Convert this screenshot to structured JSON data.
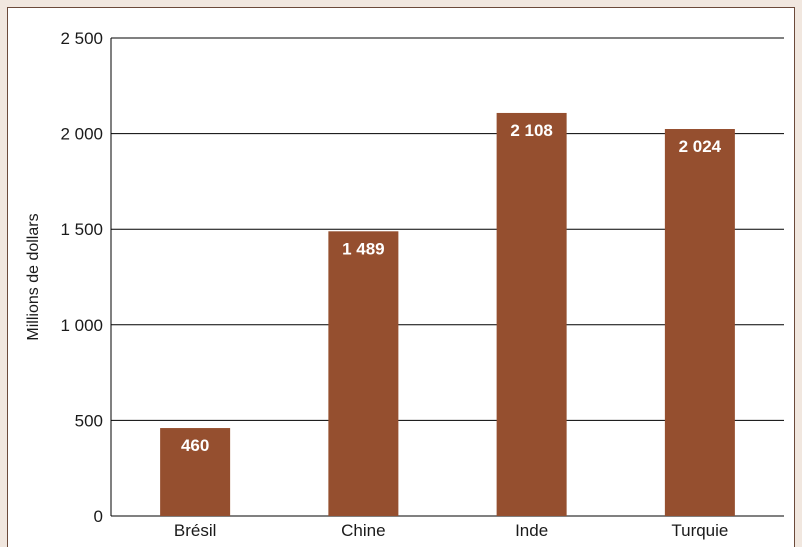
{
  "chart_data": {
    "type": "bar",
    "categories": [
      "Brésil",
      "Chine",
      "Inde",
      "Turquie"
    ],
    "values": [
      460,
      1489,
      2108,
      2024
    ],
    "data_labels": [
      "460",
      "1 489",
      "2 108",
      "2 024"
    ],
    "ylabel": "Millions de dollars",
    "xlabel": "",
    "ylim": [
      0,
      2500
    ],
    "yticks": [
      0,
      500,
      1000,
      1500,
      2000,
      2500
    ],
    "ytick_labels": [
      "0",
      "500",
      "1 000",
      "1 500",
      "2 000",
      "2 500"
    ],
    "grid": true,
    "colors": {
      "bar": "#954f2f",
      "background": "#f1e7df",
      "grid": "#000000"
    }
  }
}
